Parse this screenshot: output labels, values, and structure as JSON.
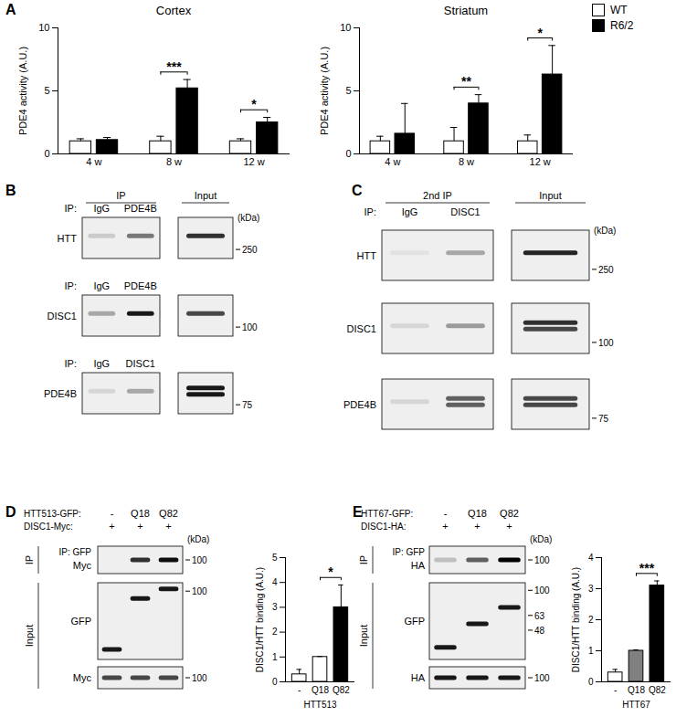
{
  "panel_labels": [
    "A",
    "B",
    "C",
    "D",
    "E"
  ],
  "chart_data": [
    {
      "type": "bar",
      "title": "Cortex",
      "ylabel": "PDE4 activity (A.U.)",
      "categories": [
        "4 w",
        "8 w",
        "12 w"
      ],
      "series": [
        {
          "name": "WT",
          "color": "#ffffff",
          "values": [
            1,
            1,
            1
          ],
          "errors": [
            0.2,
            0.4,
            0.2
          ]
        },
        {
          "name": "R6/2",
          "color": "#000000",
          "values": [
            1.1,
            5.2,
            2.5
          ],
          "errors": [
            0.2,
            0.7,
            0.4
          ]
        }
      ],
      "ylim": [
        0,
        10
      ],
      "yticks": [
        0,
        5,
        10
      ],
      "annotations": [
        {
          "between": [
            "8 w"
          ],
          "text": "***"
        },
        {
          "between": [
            "12 w"
          ],
          "text": "*"
        }
      ]
    },
    {
      "type": "bar",
      "title": "Striatum",
      "ylabel": "PDE4 activity (A.U.)",
      "legend": "top-right",
      "categories": [
        "4 w",
        "8 w",
        "12 w"
      ],
      "series": [
        {
          "name": "WT",
          "color": "#ffffff",
          "values": [
            1,
            1,
            1
          ],
          "errors": [
            0.4,
            1.1,
            0.5
          ]
        },
        {
          "name": "R6/2",
          "color": "#000000",
          "values": [
            1.6,
            4.0,
            6.3
          ],
          "errors": [
            2.4,
            0.7,
            2.3
          ]
        }
      ],
      "ylim": [
        0,
        10
      ],
      "yticks": [
        0,
        5,
        10
      ],
      "annotations": [
        {
          "between": [
            "8 w"
          ],
          "text": "**"
        },
        {
          "between": [
            "12 w"
          ],
          "text": "*"
        }
      ]
    },
    {
      "type": "bar",
      "xlabel": "HTT513",
      "ylabel": "DISC1/HTT binding (A.U.)",
      "categories": [
        "-",
        "Q18",
        "Q82"
      ],
      "series": [
        {
          "colors": [
            "#ffffff",
            "#ffffff",
            "#000000"
          ],
          "values": [
            0.3,
            1.0,
            3.0
          ],
          "errors": [
            0.2,
            0.02,
            0.9
          ]
        }
      ],
      "ylim": [
        0,
        5
      ],
      "yticks": [
        0,
        1,
        2,
        3,
        4,
        5
      ],
      "annotations": [
        {
          "between": [
            "Q18",
            "Q82"
          ],
          "text": "*"
        }
      ]
    },
    {
      "type": "bar",
      "xlabel": "HTT67",
      "ylabel": "DISC1/HTT binding (A.U.)",
      "categories": [
        "-",
        "Q18",
        "Q82"
      ],
      "series": [
        {
          "colors": [
            "#ffffff",
            "#808080",
            "#000000"
          ],
          "values": [
            0.3,
            1.0,
            3.1
          ],
          "errors": [
            0.1,
            0.03,
            0.15
          ]
        }
      ],
      "ylim": [
        0,
        4
      ],
      "yticks": [
        0,
        1,
        2,
        3,
        4
      ],
      "annotations": [
        {
          "between": [
            "Q18",
            "Q82"
          ],
          "text": "***"
        }
      ]
    }
  ],
  "blots": {
    "B": {
      "header": {
        "ip": "IP",
        "input": "Input"
      },
      "kda_label": "(kDa)",
      "rows": [
        {
          "ip": {
            "label": "IP:",
            "lanes": [
              "IgG",
              "PDE4B"
            ]
          },
          "target": "HTT",
          "bands": [
            0.15,
            0.5,
            0.8
          ],
          "markers": [
            250
          ]
        },
        {
          "ip": {
            "label": "IP:",
            "lanes": [
              "IgG",
              "PDE4B"
            ]
          },
          "target": "DISC1",
          "bands": [
            0.3,
            0.9,
            0.7
          ],
          "markers": [
            100
          ]
        },
        {
          "ip": {
            "label": "IP:",
            "lanes": [
              "IgG",
              "DISC1"
            ]
          },
          "target": "PDE4B",
          "bands": [
            0.1,
            0.3,
            [
              0.9,
              0.9
            ]
          ],
          "markers": [
            75
          ]
        }
      ]
    },
    "C": {
      "header": {
        "ip": "2nd IP",
        "input": "Input"
      },
      "ip": {
        "label": "IP:",
        "lanes": [
          "IgG",
          "DISC1"
        ]
      },
      "kda_label": "(kDa)",
      "rows": [
        {
          "target": "HTT",
          "bands": [
            0.05,
            0.3,
            0.85
          ],
          "markers": [
            250
          ]
        },
        {
          "target": "DISC1",
          "bands": [
            0.1,
            0.35,
            [
              0.8,
              0.7
            ]
          ],
          "markers": [
            100
          ]
        },
        {
          "target": "PDE4B",
          "bands": [
            0.1,
            [
              0.6,
              0.6
            ],
            [
              0.7,
              0.7
            ]
          ],
          "markers": [
            75
          ]
        }
      ]
    },
    "D": {
      "conditions": [
        {
          "label": "HTT513-GFP:",
          "values": [
            "-",
            "Q18",
            "Q82"
          ]
        },
        {
          "label": "DISC1-Myc:",
          "values": [
            "+",
            "+",
            "+"
          ]
        }
      ],
      "kda_label": "(kDa)",
      "sections": [
        {
          "name": "IP",
          "title": "IP: GFP",
          "rows": [
            {
              "target": "Myc",
              "bands": [
                0,
                0.8,
                0.95
              ],
              "markers": [
                100
              ]
            }
          ]
        },
        {
          "name": "Input",
          "rows": [
            {
              "target": "GFP",
              "bands": [
                0.9,
                0.9,
                0.9
              ],
              "band_kda": [
                27,
                85,
                105
              ],
              "markers": [
                100
              ]
            },
            {
              "target": "Myc",
              "bands": [
                0.7,
                0.7,
                0.7
              ],
              "markers": [
                100
              ]
            }
          ]
        }
      ]
    },
    "E": {
      "conditions": [
        {
          "label": "HTT67-GFP:",
          "values": [
            "-",
            "Q18",
            "Q82"
          ]
        },
        {
          "label": "DISC1-HA:",
          "values": [
            "+",
            "+",
            "+"
          ]
        }
      ],
      "kda_label": "(kDa)",
      "sections": [
        {
          "name": "IP",
          "title": "IP: GFP",
          "rows": [
            {
              "target": "HA",
              "bands": [
                0.2,
                0.6,
                1
              ],
              "markers": [
                100
              ]
            }
          ]
        },
        {
          "name": "Input",
          "rows": [
            {
              "target": "GFP",
              "bands": [
                0.9,
                0.9,
                0.9
              ],
              "band_kda": [
                35,
                54,
                73
              ],
              "markers": [
                100,
                63,
                48
              ]
            },
            {
              "target": "HA",
              "bands": [
                0.9,
                0.9,
                0.9
              ],
              "markers": [
                100
              ]
            }
          ]
        }
      ]
    }
  }
}
